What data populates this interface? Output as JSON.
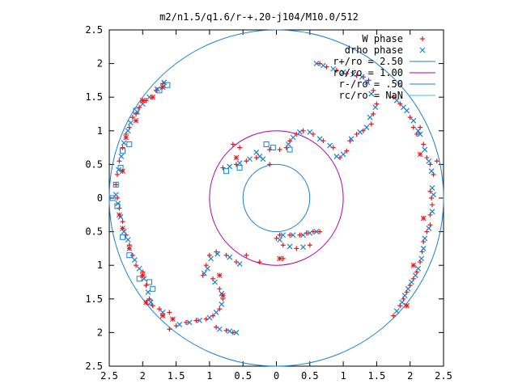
{
  "chart_data": {
    "type": "scatter",
    "title": "m2/n1.5/q1.6/r-+.20-j104/M10.0/512",
    "xlabel": "",
    "ylabel": "",
    "xlim": [
      -2.5,
      2.5
    ],
    "ylim": [
      -2.5,
      2.5
    ],
    "x_ticks": [
      -2.5,
      -2,
      -1.5,
      -1,
      -0.5,
      0,
      0.5,
      1,
      1.5,
      2,
      2.5
    ],
    "x_tick_labels": [
      "2.5",
      "2",
      "1.5",
      "1",
      "0.5",
      "0",
      "0.5",
      "1",
      "1.5",
      "2",
      "2.5"
    ],
    "y_ticks": [
      2.5,
      2,
      1.5,
      1,
      0.5,
      0,
      -0.5,
      -1,
      -1.5,
      -2,
      -2.5
    ],
    "y_tick_labels": [
      "2.5",
      "2",
      "1.5",
      "1",
      "0.5",
      "0",
      "0.5",
      "1",
      "1.5",
      "2",
      "2.5"
    ],
    "grid": false,
    "legend_position": "top-right",
    "series": [
      {
        "name": "W phase",
        "marker": "plus",
        "color": "#e41a1c",
        "points": [
          [
            0.65,
            2.0
          ],
          [
            0.75,
            1.95
          ],
          [
            0.9,
            1.9
          ],
          [
            1.05,
            1.85
          ],
          [
            1.2,
            1.82
          ],
          [
            1.3,
            1.8
          ],
          [
            1.38,
            1.75
          ],
          [
            1.45,
            1.6
          ],
          [
            1.5,
            1.4
          ],
          [
            1.45,
            1.25
          ],
          [
            1.42,
            1.1
          ],
          [
            1.3,
            1.0
          ],
          [
            1.2,
            0.95
          ],
          [
            1.1,
            0.85
          ],
          [
            1.05,
            0.7
          ],
          [
            0.95,
            0.6
          ],
          [
            0.85,
            0.75
          ],
          [
            0.7,
            0.85
          ],
          [
            0.55,
            0.95
          ],
          [
            0.4,
            1.0
          ],
          [
            0.3,
            0.95
          ],
          [
            0.2,
            0.85
          ],
          [
            0.15,
            0.75
          ],
          [
            0.05,
            0.72
          ],
          [
            -0.1,
            0.72
          ],
          [
            -0.3,
            0.6
          ],
          [
            -0.45,
            0.55
          ],
          [
            -0.6,
            0.5
          ],
          [
            -0.8,
            0.45
          ],
          [
            -0.1,
            0.5
          ],
          [
            -0.65,
            0.8
          ],
          [
            -0.55,
            0.75
          ],
          [
            0.65,
            -0.5
          ],
          [
            0.55,
            -0.5
          ],
          [
            0.45,
            -0.52
          ],
          [
            0.35,
            -0.55
          ],
          [
            0.2,
            -0.55
          ],
          [
            0.05,
            -0.55
          ],
          [
            0.0,
            -0.6
          ],
          [
            0.1,
            -0.7
          ],
          [
            0.3,
            -0.75
          ],
          [
            0.5,
            -0.7
          ],
          [
            0.1,
            -0.9
          ],
          [
            -0.25,
            -0.95
          ],
          [
            -0.45,
            -0.85
          ],
          [
            -0.6,
            -0.95
          ],
          [
            -0.75,
            -0.85
          ],
          [
            -0.9,
            -0.8
          ],
          [
            -1.0,
            -0.85
          ],
          [
            -1.05,
            -1.0
          ],
          [
            -1.1,
            -1.15
          ],
          [
            -0.95,
            -1.2
          ],
          [
            -0.85,
            -1.35
          ],
          [
            -0.8,
            -1.5
          ],
          [
            -0.85,
            -1.65
          ],
          [
            -0.95,
            -1.75
          ],
          [
            -1.05,
            -1.8
          ],
          [
            -1.2,
            -1.82
          ],
          [
            -1.35,
            -1.85
          ],
          [
            -1.5,
            -1.9
          ],
          [
            -1.6,
            -1.95
          ],
          [
            -0.65,
            -2.0
          ],
          [
            -0.75,
            -1.97
          ],
          [
            -0.9,
            -1.92
          ],
          [
            -1.7,
            1.7
          ],
          [
            -1.8,
            1.6
          ],
          [
            -1.95,
            1.45
          ],
          [
            -2.05,
            1.35
          ],
          [
            -2.1,
            1.25
          ],
          [
            -2.15,
            1.2
          ],
          [
            -2.2,
            1.05
          ],
          [
            -2.25,
            0.95
          ],
          [
            -2.3,
            0.75
          ],
          [
            -2.35,
            0.55
          ],
          [
            -2.38,
            0.35
          ],
          [
            -2.4,
            0.2
          ],
          [
            -2.38,
            0.0
          ],
          [
            -2.35,
            -0.15
          ],
          [
            -2.3,
            -0.35
          ],
          [
            -2.25,
            -0.55
          ],
          [
            -2.2,
            -0.7
          ],
          [
            -2.15,
            -0.85
          ],
          [
            -2.1,
            -1.0
          ],
          [
            -2.0,
            -1.1
          ],
          [
            -1.95,
            -1.3
          ],
          [
            -1.9,
            -1.5
          ],
          [
            -1.85,
            -1.6
          ],
          [
            -1.75,
            -1.65
          ],
          [
            -1.6,
            -1.7
          ],
          [
            1.75,
            1.5
          ],
          [
            1.85,
            1.4
          ],
          [
            2.0,
            1.2
          ],
          [
            2.05,
            1.05
          ],
          [
            2.1,
            0.95
          ],
          [
            2.2,
            0.8
          ],
          [
            2.25,
            0.6
          ],
          [
            2.3,
            0.5
          ],
          [
            2.35,
            0.35
          ],
          [
            2.3,
            0.1
          ],
          [
            2.32,
            0.0
          ],
          [
            2.33,
            -0.1
          ],
          [
            2.3,
            -0.25
          ],
          [
            2.3,
            -0.4
          ],
          [
            2.25,
            -0.5
          ],
          [
            2.2,
            -0.65
          ],
          [
            2.18,
            -0.8
          ],
          [
            2.15,
            -0.95
          ],
          [
            2.1,
            -1.1
          ],
          [
            2.05,
            -1.2
          ],
          [
            2.0,
            -1.3
          ],
          [
            1.95,
            -1.4
          ],
          [
            1.9,
            -1.5
          ],
          [
            1.85,
            -1.6
          ],
          [
            1.75,
            -1.75
          ],
          [
            2.4,
            0.55
          ],
          [
            2.15,
            1.05
          ]
        ]
      },
      {
        "name": "drho phase",
        "marker": "x",
        "color": "#1a80d4",
        "points": [
          [
            0.6,
            2.0
          ],
          [
            0.7,
            1.97
          ],
          [
            0.85,
            1.92
          ],
          [
            1.0,
            1.87
          ],
          [
            1.15,
            1.84
          ],
          [
            1.28,
            1.8
          ],
          [
            1.36,
            1.72
          ],
          [
            1.42,
            1.55
          ],
          [
            1.48,
            1.35
          ],
          [
            1.4,
            1.2
          ],
          [
            1.35,
            1.05
          ],
          [
            1.25,
            0.98
          ],
          [
            1.12,
            0.88
          ],
          [
            1.0,
            0.65
          ],
          [
            0.9,
            0.62
          ],
          [
            0.8,
            0.78
          ],
          [
            0.65,
            0.88
          ],
          [
            0.5,
            0.98
          ],
          [
            0.35,
            0.98
          ],
          [
            0.25,
            0.9
          ],
          [
            0.18,
            0.8
          ],
          [
            -0.25,
            0.62
          ],
          [
            -0.4,
            0.58
          ],
          [
            -0.55,
            0.52
          ],
          [
            -0.7,
            0.47
          ],
          [
            -0.3,
            0.68
          ],
          [
            -0.2,
            0.58
          ],
          [
            0.6,
            -0.5
          ],
          [
            0.5,
            -0.52
          ],
          [
            0.4,
            -0.55
          ],
          [
            0.25,
            -0.55
          ],
          [
            0.1,
            -0.55
          ],
          [
            0.05,
            -0.62
          ],
          [
            0.2,
            -0.72
          ],
          [
            0.4,
            -0.73
          ],
          [
            -0.55,
            -0.98
          ],
          [
            -0.7,
            -0.88
          ],
          [
            -0.88,
            -0.83
          ],
          [
            -0.98,
            -0.9
          ],
          [
            -1.03,
            -1.05
          ],
          [
            -1.08,
            -1.12
          ],
          [
            -0.92,
            -1.25
          ],
          [
            -0.82,
            -1.42
          ],
          [
            -0.82,
            -1.58
          ],
          [
            -0.9,
            -1.7
          ],
          [
            -1.0,
            -1.78
          ],
          [
            -1.15,
            -1.82
          ],
          [
            -1.3,
            -1.85
          ],
          [
            -1.45,
            -1.88
          ],
          [
            -0.6,
            -2.0
          ],
          [
            -0.7,
            -1.98
          ],
          [
            -0.85,
            -1.95
          ],
          [
            -1.68,
            1.72
          ],
          [
            -1.78,
            1.62
          ],
          [
            -1.9,
            1.5
          ],
          [
            -2.0,
            1.4
          ],
          [
            -2.08,
            1.28
          ],
          [
            -2.18,
            1.12
          ],
          [
            -2.22,
            1.0
          ],
          [
            -2.28,
            0.82
          ],
          [
            -2.32,
            0.62
          ],
          [
            -2.36,
            0.42
          ],
          [
            -2.4,
            0.05
          ],
          [
            -2.37,
            -0.08
          ],
          [
            -2.33,
            -0.28
          ],
          [
            -2.28,
            -0.5
          ],
          [
            -2.22,
            -0.62
          ],
          [
            -2.12,
            -0.92
          ],
          [
            -2.05,
            -1.05
          ],
          [
            -1.98,
            -1.2
          ],
          [
            -1.92,
            -1.4
          ],
          [
            -1.88,
            -1.55
          ],
          [
            -1.7,
            -1.7
          ],
          [
            1.8,
            1.45
          ],
          [
            1.9,
            1.35
          ],
          [
            2.05,
            1.15
          ],
          [
            2.12,
            1.0
          ],
          [
            2.15,
            0.95
          ],
          [
            2.22,
            0.72
          ],
          [
            2.28,
            0.55
          ],
          [
            2.32,
            0.4
          ],
          [
            2.33,
            0.15
          ],
          [
            2.35,
            0.05
          ],
          [
            2.33,
            -0.2
          ],
          [
            2.28,
            -0.45
          ],
          [
            2.22,
            -0.6
          ],
          [
            2.2,
            -0.75
          ],
          [
            2.17,
            -0.9
          ],
          [
            2.12,
            -1.05
          ],
          [
            2.08,
            -1.15
          ],
          [
            2.02,
            -1.25
          ],
          [
            1.97,
            -1.35
          ],
          [
            1.92,
            -1.45
          ],
          [
            1.88,
            -1.55
          ],
          [
            1.8,
            -1.68
          ],
          [
            1.95,
            1.3
          ]
        ]
      },
      {
        "name": "",
        "marker": "square",
        "color": "#1a80d4",
        "points": [
          [
            -1.63,
            1.68
          ],
          [
            -1.75,
            1.6
          ],
          [
            -2.1,
            1.3
          ],
          [
            -2.2,
            0.8
          ],
          [
            -2.3,
            0.7
          ],
          [
            -2.33,
            0.45
          ],
          [
            -2.4,
            0.2
          ],
          [
            -2.45,
            0.0
          ],
          [
            -2.38,
            -0.12
          ],
          [
            -2.3,
            -0.58
          ],
          [
            -2.2,
            -0.85
          ],
          [
            -2.05,
            -1.2
          ],
          [
            -1.9,
            -1.25
          ],
          [
            -1.85,
            -1.35
          ],
          [
            -1.9,
            -1.55
          ],
          [
            -0.15,
            0.8
          ],
          [
            0.2,
            0.72
          ],
          [
            -0.05,
            0.75
          ],
          [
            -0.55,
            0.45
          ],
          [
            -0.75,
            0.4
          ]
        ]
      },
      {
        "name": "",
        "marker": "asterisk",
        "color": "#e41a1c",
        "points": [
          [
            -1.7,
            1.65
          ],
          [
            -1.85,
            1.5
          ],
          [
            -2.0,
            1.45
          ],
          [
            -2.1,
            1.15
          ],
          [
            -2.25,
            0.9
          ],
          [
            -2.3,
            0.4
          ],
          [
            -2.35,
            -0.25
          ],
          [
            -2.3,
            -0.45
          ],
          [
            -2.2,
            -0.75
          ],
          [
            -2.0,
            -1.15
          ],
          [
            -1.95,
            -1.55
          ],
          [
            -1.7,
            -1.75
          ],
          [
            -1.55,
            -1.8
          ],
          [
            2.15,
            0.65
          ],
          [
            2.2,
            -0.3
          ],
          [
            2.05,
            -1.0
          ],
          [
            1.95,
            -1.6
          ],
          [
            -0.8,
            -1.45
          ],
          [
            -0.85,
            -1.15
          ],
          [
            0.05,
            -0.9
          ],
          [
            -0.6,
            0.6
          ]
        ]
      }
    ],
    "circles": [
      {
        "name": "r+/ro = 2.50",
        "r": 2.5,
        "color": "#1a80d4"
      },
      {
        "name": "ro/ro = 1.00",
        "r": 1.0,
        "color": "#b000b0"
      },
      {
        "name": "r-/ro = .50",
        "r": 0.5,
        "color": "#1a80d4"
      },
      {
        "name": "rc/ro = NaN",
        "r": null,
        "color": "#33c0e0"
      }
    ]
  }
}
